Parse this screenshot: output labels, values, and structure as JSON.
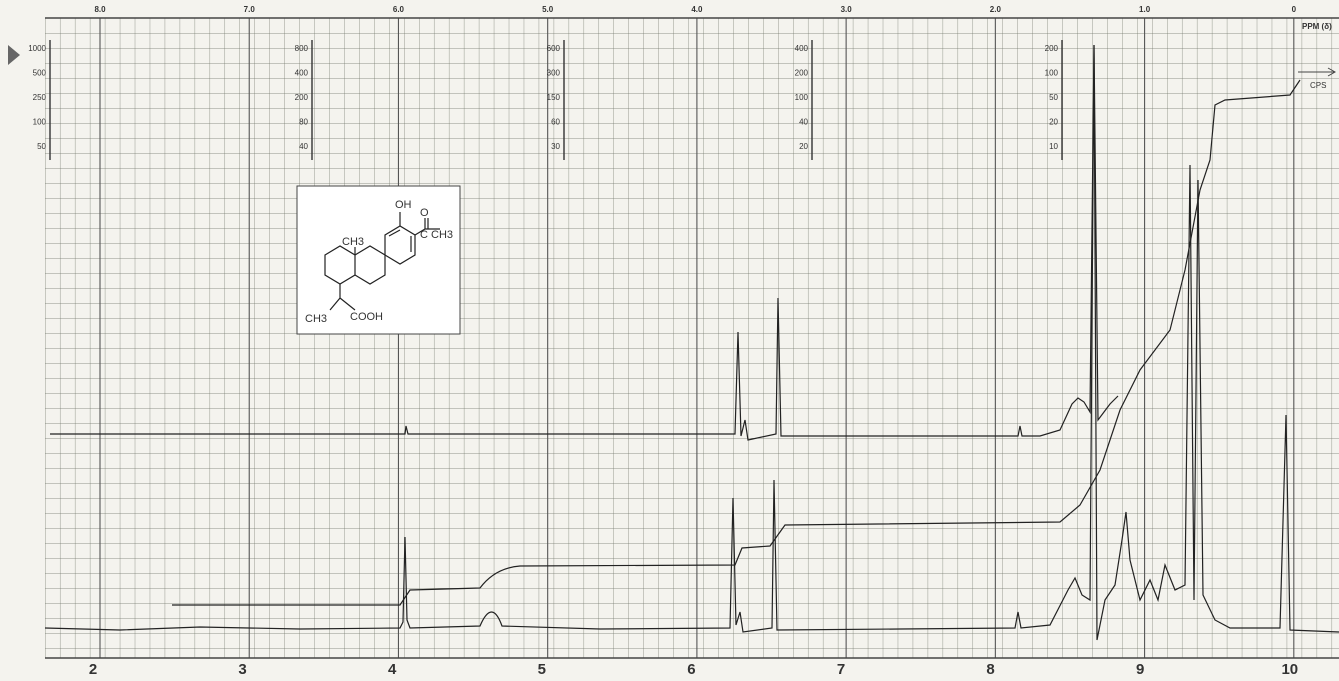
{
  "top_scale": {
    "labels": [
      "8.0",
      "7.0",
      "6.0",
      "5.0",
      "4.0",
      "3.0",
      "2.0",
      "1.0",
      "0"
    ],
    "unit": "PPM (δ)"
  },
  "bottom_scale": {
    "labels": [
      "2",
      "3",
      "4",
      "5",
      "6",
      "7",
      "8",
      "9",
      "10"
    ]
  },
  "sweep_offsets": [
    [
      "1000",
      "500",
      "250",
      "100",
      "50"
    ],
    [
      "800",
      "400",
      "200",
      "80",
      "40"
    ],
    [
      "600",
      "300",
      "150",
      "60",
      "30"
    ],
    [
      "400",
      "200",
      "100",
      "40",
      "20"
    ],
    [
      "200",
      "100",
      "50",
      "20",
      "10"
    ]
  ],
  "cps_label": "CPS",
  "structure": {
    "labels": [
      "OH",
      "O",
      "C CH3",
      "CH3",
      "CH3",
      "COOH"
    ]
  }
}
